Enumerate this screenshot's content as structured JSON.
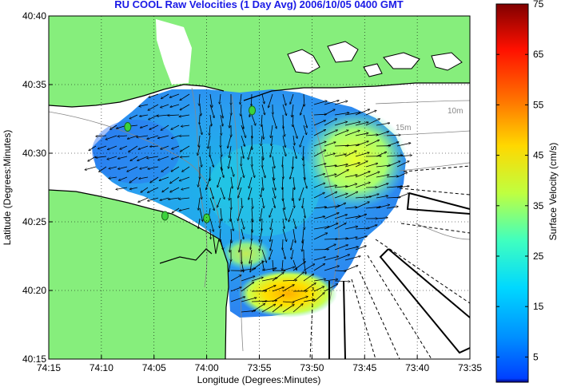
{
  "map": {
    "title": "RU COOL Raw Velocities (1 Day Avg) 2006/10/05 0400 GMT",
    "xlabel": "Longitude (Degrees:Minutes)",
    "ylabel": "Latitude (Degrees:Minutes)",
    "xticks": [
      "74:15",
      "74:10",
      "74:05",
      "74:00",
      "73:55",
      "73:50",
      "73:45",
      "73:40",
      "73:35"
    ],
    "yticks": [
      "40:40",
      "40:35",
      "40:30",
      "40:25",
      "40:20",
      "40:15"
    ],
    "depth_labels": [
      "10m",
      "15m"
    ],
    "land_color": "#86ee7c",
    "water_color": "#ffffff"
  },
  "colorbar": {
    "label": "Surface Velocity (cm/s)",
    "ticks": [
      "75",
      "65",
      "55",
      "45",
      "35",
      "25",
      "15",
      "5"
    ],
    "min": 0,
    "max": 75
  },
  "stations": [
    {
      "lon": -74.125,
      "lat": 40.532
    },
    {
      "lon": -74.066,
      "lat": 40.424
    },
    {
      "lon": -74.0,
      "lat": 40.421
    },
    {
      "lon": -73.928,
      "lat": 40.552
    }
  ]
}
